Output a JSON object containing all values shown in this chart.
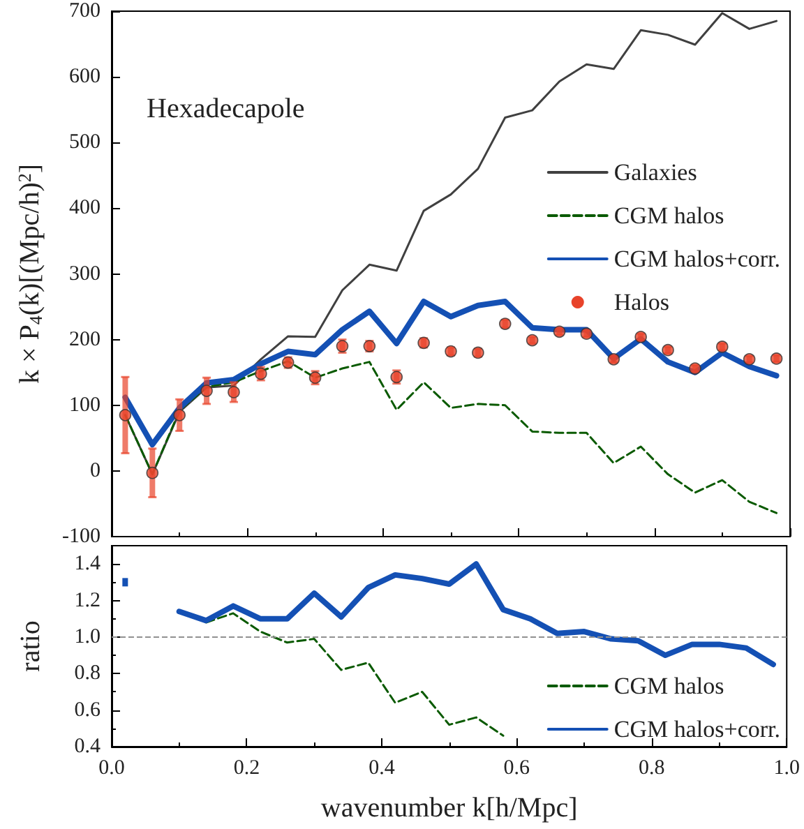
{
  "chart_data": [
    {
      "type": "line",
      "ylabel": "k × P$_{4}$(k)[(Mpc/h)$^{2}$]",
      "annotations": [
        "Hexadecapole"
      ],
      "x": [
        0.02,
        0.06,
        0.1,
        0.14,
        0.18,
        0.22,
        0.26,
        0.3,
        0.34,
        0.38,
        0.42,
        0.46,
        0.5,
        0.54,
        0.58,
        0.62,
        0.66,
        0.7,
        0.74,
        0.78,
        0.82,
        0.86,
        0.9,
        0.94,
        0.98
      ],
      "series": [
        {
          "name": "Galaxies",
          "color": "#404040",
          "line_style": "solid",
          "values": [
            85,
            -5,
            90,
            127,
            130,
            170,
            205,
            204,
            275,
            314,
            305,
            396,
            421,
            460,
            538,
            549,
            593,
            619,
            612,
            671,
            664,
            649,
            697,
            673,
            685
          ]
        },
        {
          "name": "CGM halos",
          "color": "#0a5a00",
          "line_style": "dashed",
          "values": [
            85,
            -5,
            92,
            128,
            135,
            152,
            167,
            142,
            156,
            166,
            93,
            135,
            96,
            102,
            100,
            60,
            58,
            58,
            12,
            37,
            -5,
            -33,
            -14,
            -47,
            -64
          ]
        },
        {
          "name": "CGM halos+corr.",
          "color": "#1450b4",
          "line_style": "solid",
          "values": [
            112,
            40,
            96,
            134,
            139,
            163,
            182,
            177,
            215,
            243,
            194,
            258,
            235,
            252,
            258,
            218,
            215,
            215,
            171,
            201,
            166,
            150,
            180,
            159,
            145
          ]
        },
        {
          "name": "Halos",
          "type": "scatter",
          "marker": "circle",
          "color": "#e8432a",
          "values": [
            85,
            -3,
            85,
            122,
            120,
            148,
            165,
            142,
            190,
            190,
            143,
            195,
            182,
            180,
            224,
            199,
            212,
            209,
            170,
            204,
            184,
            156,
            189,
            170,
            171
          ],
          "errors": [
            58,
            37,
            24,
            20,
            15,
            10,
            8,
            10,
            10,
            8,
            10,
            7,
            6,
            6,
            6,
            5,
            5,
            5,
            5,
            5,
            5,
            5,
            5,
            5,
            5
          ]
        }
      ],
      "xlim": [
        0,
        1
      ],
      "xticks": [
        0,
        0.2,
        0.4,
        0.6,
        0.8,
        1
      ],
      "ylim": [
        -100,
        700
      ],
      "yticks": [
        -100,
        0,
        100,
        200,
        300,
        400,
        500,
        600,
        700
      ],
      "tick_labels": "y",
      "legend": "right",
      "grid": false
    },
    {
      "type": "line",
      "xlabel": "wavenumber k[h/Mpc]",
      "ylabel": "ratio",
      "x": [
        0.02,
        0.06,
        0.1,
        0.14,
        0.18,
        0.22,
        0.26,
        0.3,
        0.34,
        0.38,
        0.42,
        0.46,
        0.5,
        0.54,
        0.58,
        0.62,
        0.66,
        0.7,
        0.74,
        0.78,
        0.82,
        0.86,
        0.9,
        0.94,
        0.98
      ],
      "series": [
        {
          "name": "CGM halos",
          "color": "#0a5a00",
          "line_style": "dashed",
          "values": [
            null,
            null,
            null,
            1.08,
            1.13,
            1.03,
            0.97,
            0.99,
            0.82,
            0.86,
            0.64,
            0.7,
            0.52,
            0.56,
            0.46,
            null,
            null,
            null,
            null,
            null,
            null,
            null,
            null,
            null,
            null
          ]
        },
        {
          "name": "CGM halos+corr.",
          "color": "#1450b4",
          "line_style": "solid",
          "values": [
            1.3,
            null,
            1.14,
            1.09,
            1.17,
            1.1,
            1.1,
            1.24,
            1.11,
            1.27,
            1.34,
            1.32,
            1.29,
            1.4,
            1.15,
            1.1,
            1.02,
            1.03,
            0.99,
            0.98,
            0.9,
            0.96,
            0.96,
            0.94,
            0.85
          ]
        }
      ],
      "ref_lines": [
        {
          "axis": "y",
          "value": 1,
          "label": null,
          "color": "#909090",
          "line_style": "dashed"
        }
      ],
      "xlim": [
        0,
        1
      ],
      "xticks": [
        {
          "value": 0,
          "label": "0.0"
        },
        {
          "value": 0.2,
          "label": "0.2"
        },
        {
          "value": 0.4,
          "label": "0.4"
        },
        {
          "value": 0.6,
          "label": "0.6"
        },
        {
          "value": 0.8,
          "label": "0.8"
        },
        {
          "value": 1,
          "label": "1.0"
        }
      ],
      "ylim": [
        0.4,
        1.5
      ],
      "yticks": [
        {
          "value": 0.4,
          "label": "0.4"
        },
        {
          "value": 0.6,
          "label": "0.6"
        },
        {
          "value": 0.8,
          "label": "0.8"
        },
        {
          "value": 1,
          "label": "1.0"
        },
        {
          "value": 1.2,
          "label": "1.2"
        },
        {
          "value": 1.4,
          "label": "1.4"
        }
      ],
      "legend": "bottom right",
      "grid": false
    }
  ]
}
